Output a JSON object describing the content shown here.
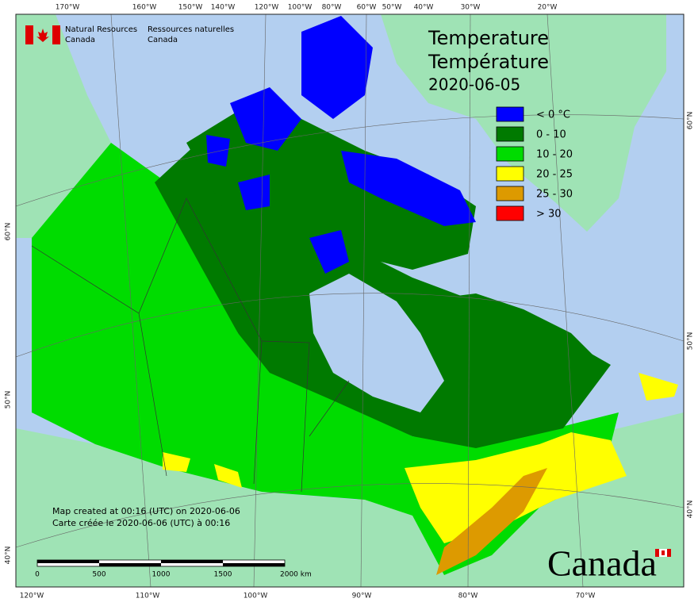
{
  "header": {
    "dept_en": [
      "Natural Resources",
      "Canada"
    ],
    "dept_fr": [
      "Ressources naturelles",
      "Canada"
    ]
  },
  "title": {
    "en": "Temperature",
    "fr": "Température",
    "date": "2020-06-05"
  },
  "legend": [
    {
      "label": "< 0 °C",
      "color": "#0000ff"
    },
    {
      "label": "0 - 10",
      "color": "#007a00"
    },
    {
      "label": "10 - 20",
      "color": "#00dc00"
    },
    {
      "label": "20 - 25",
      "color": "#ffff00"
    },
    {
      "label": "25 - 30",
      "color": "#dd9a00"
    },
    {
      "label": "> 30",
      "color": "#ff0000"
    }
  ],
  "graticule": {
    "top": [
      "170°W",
      "160°W",
      "150°W",
      "140°W",
      "120°W",
      "100°W",
      "80°W",
      "60°W",
      "50°W",
      "40°W",
      "30°W",
      "20°W"
    ],
    "bottom": [
      "120°W",
      "110°W",
      "100°W",
      "90°W",
      "80°W",
      "70°W"
    ],
    "left": [
      "60°N",
      "50°N",
      "40°N"
    ],
    "right": [
      "60°N",
      "50°N",
      "40°N"
    ]
  },
  "notes": [
    "Map created at 00:16 (UTC) on 2020-06-06",
    "Carte créée le 2020-06-06 (UTC) à 00:16"
  ],
  "scale_bar": [
    "0",
    "500",
    "1000",
    "1500",
    "2000 km"
  ],
  "wordmark": "Canada"
}
